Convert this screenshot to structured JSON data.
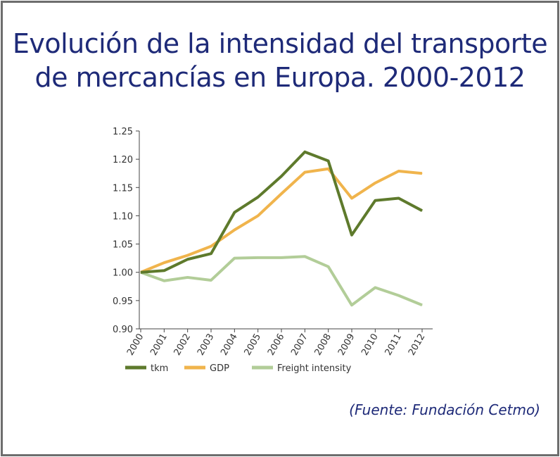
{
  "title_line1": "Evolución de la intensidad del transporte",
  "title_line2": "de mercancías en Europa. 2000-2012",
  "source": "(Fuente: Fundación Cetmo)",
  "chart_data": {
    "type": "line",
    "title": "",
    "xlabel": "",
    "ylabel": "",
    "x": [
      "2000",
      "2001",
      "2002",
      "2003",
      "2004",
      "2005",
      "2006",
      "2007",
      "2008",
      "2009",
      "2010",
      "2011",
      "2012"
    ],
    "ylim": [
      0.9,
      1.25
    ],
    "yticks": [
      "0.90",
      "0.95",
      "1.00",
      "1.05",
      "1.10",
      "1.15",
      "1.20",
      "1.25"
    ],
    "grid": false,
    "legend": "bottom",
    "series": [
      {
        "name": "tkm",
        "color": "#5e7a2c",
        "values": [
          1.0,
          1.003,
          1.023,
          1.033,
          1.106,
          1.133,
          1.17,
          1.213,
          1.197,
          1.066,
          1.127,
          1.131,
          1.109
        ]
      },
      {
        "name": "GDP",
        "color": "#f0b44c",
        "values": [
          1.0,
          1.017,
          1.03,
          1.046,
          1.075,
          1.1,
          1.139,
          1.177,
          1.183,
          1.131,
          1.158,
          1.179,
          1.175
        ]
      },
      {
        "name": "Freight intensity",
        "color": "#b2cd98",
        "values": [
          1.0,
          0.985,
          0.991,
          0.986,
          1.025,
          1.026,
          1.026,
          1.028,
          1.01,
          0.942,
          0.973,
          0.959,
          0.942
        ]
      }
    ]
  }
}
